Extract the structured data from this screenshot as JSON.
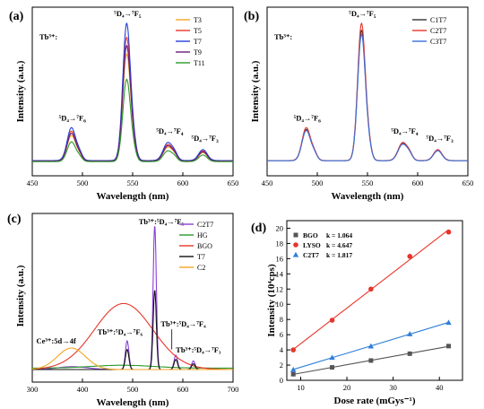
{
  "chart_data": [
    {
      "panel": "(a)",
      "type": "line",
      "xlabel": "Wavelength (nm)",
      "ylabel": "Intensity (a.u.)",
      "xlim": [
        450,
        650
      ],
      "xticks": [
        "450",
        "500",
        "550",
        "600",
        "650"
      ],
      "ion_label": "Tb³⁺:",
      "legend_position": "top-right",
      "series": [
        {
          "name": "T3",
          "color": "#f5a623",
          "scale": 0.78
        },
        {
          "name": "T5",
          "color": "#e8352b",
          "scale": 0.9
        },
        {
          "name": "T7",
          "color": "#2440d8",
          "scale": 1.0
        },
        {
          "name": "T9",
          "color": "#6b1d7a",
          "scale": 0.84
        },
        {
          "name": "T11",
          "color": "#2a9a2a",
          "scale": 0.6
        }
      ],
      "annotations": [
        {
          "main": "⁵D₄→⁷F",
          "sub": "6",
          "x": 490
        },
        {
          "main": "⁵D₄→⁷F",
          "sub": "5",
          "x": 545
        },
        {
          "main": "⁵D₄→⁷F",
          "sub": "4",
          "x": 587
        },
        {
          "main": "⁵D₄→⁷F",
          "sub": "3",
          "x": 622
        }
      ]
    },
    {
      "panel": "(b)",
      "type": "line",
      "xlabel": "Wavelength (nm)",
      "ylabel": "Intensity (a.u.)",
      "xlim": [
        450,
        650
      ],
      "xticks": [
        "450",
        "500",
        "550",
        "600",
        "650"
      ],
      "ion_label": "Tb³⁺:",
      "legend_position": "top-right",
      "series": [
        {
          "name": "C1T7",
          "color": "#333333",
          "scale": 0.95
        },
        {
          "name": "C2T7",
          "color": "#e8352b",
          "scale": 1.0
        },
        {
          "name": "C3T7",
          "color": "#3a6fd8",
          "scale": 0.92
        }
      ],
      "annotations": [
        {
          "main": "⁵D₄→⁷F",
          "sub": "6",
          "x": 490
        },
        {
          "main": "⁵D₄→⁷F",
          "sub": "5",
          "x": 545
        },
        {
          "main": "⁵D₄→⁷F",
          "sub": "4",
          "x": 587
        },
        {
          "main": "⁵D₄→⁷F",
          "sub": "3",
          "x": 622
        }
      ]
    },
    {
      "panel": "(c)",
      "type": "line",
      "xlabel": "Wavelength (nm)",
      "ylabel": "Intensity (a.u.)",
      "xlim": [
        300,
        700
      ],
      "xticks": [
        "300",
        "400",
        "500",
        "600",
        "700"
      ],
      "legend_position": "top-right",
      "series": [
        {
          "name": "C2T7",
          "color": "#8a3fd6"
        },
        {
          "name": "HG",
          "color": "#2a9a2a"
        },
        {
          "name": "BGO",
          "color": "#e8352b"
        },
        {
          "name": "T7",
          "color": "#111111"
        },
        {
          "name": "C2",
          "color": "#f5a623"
        }
      ],
      "annotations": {
        "f5": "Tb³⁺:⁵D₄→⁷F₅",
        "f6": "Tb³⁺:⁵D₄→⁷F₆",
        "f4": "Tb³⁺:⁵D₄→⁷F₄",
        "f3": "Tb³⁺:⁵D₄→⁷F₃",
        "ce": "Ce³⁺:5d→4f"
      }
    },
    {
      "panel": "(d)",
      "type": "scatter",
      "xlabel": "Dose rate (mGys⁻¹)",
      "ylabel": "Intensity (10⁴cps)",
      "xlim": [
        7,
        45
      ],
      "ylim": [
        0,
        21
      ],
      "xticks": [
        10,
        20,
        30,
        40
      ],
      "yticks": [
        0,
        2,
        4,
        6,
        8,
        10,
        12,
        14,
        16,
        18,
        20
      ],
      "legend_position": "top-left",
      "series": [
        {
          "name": "BGO",
          "k": "k = 1.064",
          "color": "#555555",
          "marker": "square",
          "x": [
            8.4,
            16.8,
            25.2,
            33.6,
            42.0
          ],
          "y": [
            0.8,
            1.7,
            2.6,
            3.5,
            4.5
          ]
        },
        {
          "name": "LYSO",
          "k": "k = 4.647",
          "color": "#e8352b",
          "marker": "circle",
          "x": [
            8.4,
            16.8,
            25.2,
            33.6,
            42.0
          ],
          "y": [
            4.0,
            7.9,
            12.0,
            16.3,
            19.5
          ]
        },
        {
          "name": "C2T7",
          "k": "k = 1.817",
          "color": "#2f7fd8",
          "marker": "triangle",
          "x": [
            8.4,
            16.8,
            25.2,
            33.6,
            42.0
          ],
          "y": [
            1.4,
            3.0,
            4.5,
            6.1,
            7.6
          ]
        }
      ]
    }
  ]
}
